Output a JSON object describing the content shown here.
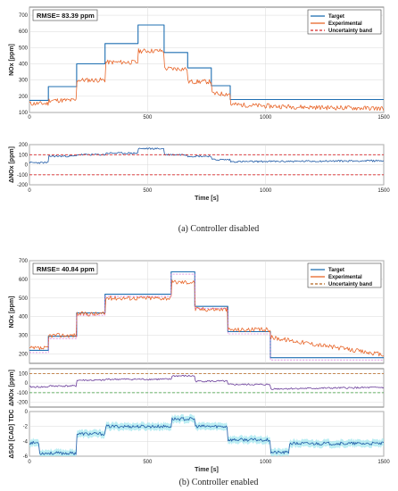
{
  "colors": {
    "target": "#1f6fb2",
    "experimental": "#e8662a",
    "uncertainty": "#d62728",
    "uncertainty_green": "#3a9a3a",
    "measured_b": "#6a3d9a",
    "error_a": "#1f5aa6",
    "error_b": "#6a3d9a",
    "soi_band": "#9fe7ee",
    "soi_line": "#1f5aa6",
    "grid": "#d9d9d9"
  },
  "chart_data": [
    {
      "id": "a-top",
      "type": "line",
      "annotation": "RMSE= 83.39 ppm",
      "xlabel": "",
      "ylabel": "NOx [ppm]",
      "xlim": [
        0,
        1500
      ],
      "ylim": [
        100,
        750
      ],
      "xticks": [
        0,
        500,
        1000,
        1500
      ],
      "yticks": [
        100,
        200,
        300,
        400,
        500,
        600,
        700
      ],
      "grid": true,
      "legend": {
        "placement": "top-right",
        "entries": [
          "Target",
          "Experimental",
          "Uncertainty band"
        ]
      },
      "series": [
        {
          "name": "Target",
          "style": "solid",
          "x": [
            0,
            80,
            80,
            200,
            200,
            320,
            320,
            460,
            460,
            570,
            570,
            670,
            670,
            770,
            770,
            850,
            850,
            1500
          ],
          "y": [
            175,
            175,
            260,
            260,
            400,
            400,
            525,
            525,
            640,
            640,
            470,
            470,
            375,
            375,
            265,
            265,
            180,
            180
          ]
        },
        {
          "name": "Experimental",
          "style": "noisy",
          "x": [
            0,
            80,
            80,
            200,
            200,
            320,
            320,
            460,
            460,
            570,
            570,
            670,
            670,
            770,
            770,
            850,
            850,
            1000,
            1200,
            1500
          ],
          "y": [
            155,
            155,
            175,
            175,
            300,
            300,
            410,
            410,
            480,
            480,
            370,
            370,
            290,
            290,
            215,
            215,
            150,
            140,
            132,
            125
          ]
        }
      ]
    },
    {
      "id": "a-bottom",
      "type": "line",
      "xlabel": "Time [s]",
      "ylabel": "ΔNOx [ppm]",
      "xlim": [
        0,
        1500
      ],
      "ylim": [
        -200,
        200
      ],
      "xticks": [
        0,
        500,
        1000,
        1500
      ],
      "xticklabels": [
        "0",
        "500",
        "1000",
        "1500"
      ],
      "yticks": [
        -200,
        -100,
        0,
        100,
        200
      ],
      "grid": true,
      "series": [
        {
          "name": "Error",
          "style": "noisy",
          "x": [
            0,
            80,
            80,
            200,
            200,
            320,
            320,
            460,
            460,
            570,
            570,
            670,
            670,
            770,
            770,
            850,
            850,
            1500
          ],
          "y": [
            20,
            20,
            85,
            85,
            100,
            100,
            115,
            115,
            160,
            160,
            100,
            100,
            85,
            85,
            50,
            50,
            30,
            40
          ]
        },
        {
          "name": "Uncertainty band upper",
          "style": "dashed",
          "x": [
            0,
            1500
          ],
          "y": [
            100,
            100
          ]
        },
        {
          "name": "Uncertainty band lower",
          "style": "dashed",
          "x": [
            0,
            1500
          ],
          "y": [
            -100,
            -100
          ]
        }
      ]
    },
    {
      "id": "b-top",
      "type": "line",
      "annotation": "RMSE= 40.84 ppm",
      "xlabel": "",
      "ylabel": "NOx [ppm]",
      "xlim": [
        0,
        1500
      ],
      "ylim": [
        150,
        700
      ],
      "xticks": [
        0,
        500,
        1000,
        1500
      ],
      "yticks": [
        200,
        300,
        400,
        500,
        600,
        700
      ],
      "grid": true,
      "legend": {
        "placement": "top-right",
        "entries": [
          "Target",
          "Experimental",
          "Uncertainty band"
        ]
      },
      "series": [
        {
          "name": "Target",
          "style": "solid",
          "x": [
            0,
            80,
            80,
            200,
            200,
            320,
            320,
            600,
            600,
            700,
            700,
            840,
            840,
            1020,
            1020,
            1500
          ],
          "y": [
            220,
            220,
            295,
            295,
            420,
            420,
            520,
            520,
            640,
            640,
            455,
            455,
            320,
            320,
            180,
            180
          ]
        },
        {
          "name": "Experimental",
          "style": "noisy",
          "x": [
            0,
            80,
            80,
            200,
            200,
            320,
            320,
            600,
            600,
            700,
            700,
            840,
            840,
            1020,
            1020,
            1500
          ],
          "y": [
            230,
            230,
            300,
            300,
            415,
            415,
            500,
            500,
            585,
            585,
            440,
            440,
            330,
            330,
            290,
            195
          ]
        }
      ]
    },
    {
      "id": "b-middle",
      "type": "line",
      "xlabel": "",
      "ylabel": "ΔNOx [ppm]",
      "xlim": [
        0,
        1500
      ],
      "ylim": [
        -250,
        150
      ],
      "xticks": [
        0,
        500,
        1000,
        1500
      ],
      "yticks": [
        -200,
        -100,
        0,
        100
      ],
      "grid": true,
      "series": [
        {
          "name": "Error",
          "style": "noisy",
          "x": [
            0,
            80,
            80,
            200,
            200,
            320,
            320,
            600,
            600,
            700,
            700,
            840,
            840,
            1020,
            1020,
            1500
          ],
          "y": [
            -40,
            -40,
            -30,
            -30,
            30,
            30,
            40,
            40,
            75,
            75,
            20,
            20,
            -15,
            -15,
            -60,
            -45
          ]
        },
        {
          "name": "Uncertainty band upper",
          "style": "dashed",
          "x": [
            0,
            1500
          ],
          "y": [
            100,
            100
          ]
        },
        {
          "name": "Uncertainty band lower",
          "style": "dashed",
          "x": [
            0,
            1500
          ],
          "y": [
            -100,
            -100
          ]
        }
      ]
    },
    {
      "id": "b-bottom",
      "type": "area",
      "xlabel": "Time [s]",
      "ylabel": "ΔSOI [CAD] TDC",
      "xlim": [
        0,
        1500
      ],
      "ylim": [
        -6,
        0
      ],
      "xticks": [
        0,
        500,
        1000,
        1500
      ],
      "xticklabels": [
        "0",
        "500",
        "1000",
        "1500"
      ],
      "yticks": [
        -6,
        -4,
        -2,
        0
      ],
      "grid": true,
      "series": [
        {
          "name": "SOI",
          "style": "noisy",
          "x": [
            0,
            40,
            40,
            200,
            200,
            320,
            320,
            600,
            600,
            700,
            700,
            840,
            840,
            1020,
            1020,
            1100,
            1100,
            1500
          ],
          "y": [
            -4.2,
            -4.2,
            -5.6,
            -5.6,
            -3.0,
            -3.0,
            -2.0,
            -2.0,
            -1.0,
            -1.0,
            -2.0,
            -2.0,
            -3.8,
            -3.8,
            -5.5,
            -5.5,
            -4.3,
            -4.3
          ]
        }
      ]
    }
  ],
  "captions": {
    "a": "(a) Controller disabled",
    "b": "(b) Controller enabled"
  }
}
